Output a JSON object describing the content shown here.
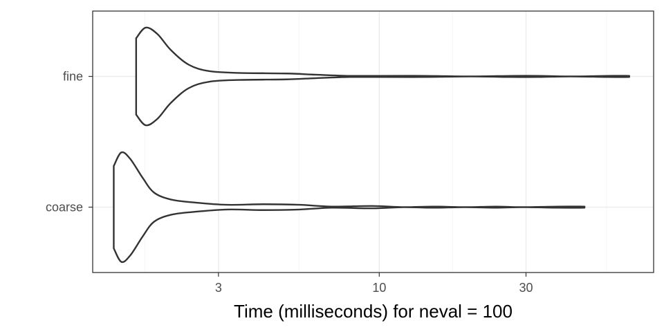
{
  "chart_data": {
    "type": "violin",
    "orientation": "horizontal",
    "title": "",
    "xlabel": "Time (milliseconds) for neval = 100",
    "ylabel": "",
    "x_scale": "log10",
    "xlim": [
      1.17,
      78
    ],
    "x_ticks": [
      3,
      10,
      30
    ],
    "x_tick_labels": [
      "3",
      "10",
      "30"
    ],
    "x_minor_ticks": [
      1.73,
      5.48,
      17.3,
      54.8
    ],
    "categories": [
      "coarse",
      "fine"
    ],
    "grid": true,
    "legend": "none",
    "colors": {
      "outline": "#333333",
      "fill": "#ffffff",
      "grid": "#ebebeb",
      "text": "#4d4d4d"
    },
    "series": [
      {
        "category": "coarse",
        "min": 1.37,
        "max": 46.5,
        "density_profile": [
          [
            1.37,
            0.7
          ],
          [
            1.45,
            0.93
          ],
          [
            1.55,
            0.82
          ],
          [
            1.7,
            0.5
          ],
          [
            1.85,
            0.25
          ],
          [
            2.1,
            0.13
          ],
          [
            2.5,
            0.08
          ],
          [
            3.2,
            0.04
          ],
          [
            4.2,
            0.05
          ],
          [
            5.5,
            0.04
          ],
          [
            7.0,
            0.01
          ],
          [
            9.5,
            0.02
          ],
          [
            12.0,
            0.0
          ],
          [
            15.0,
            0.01
          ],
          [
            19.0,
            0.0
          ],
          [
            24.0,
            0.01
          ],
          [
            29.0,
            0.0
          ],
          [
            38.0,
            0.01
          ],
          [
            46.5,
            0.01
          ]
        ]
      },
      {
        "category": "fine",
        "min": 1.62,
        "max": 65.0,
        "density_profile": [
          [
            1.62,
            0.65
          ],
          [
            1.74,
            0.83
          ],
          [
            1.9,
            0.72
          ],
          [
            2.1,
            0.45
          ],
          [
            2.4,
            0.2
          ],
          [
            2.8,
            0.09
          ],
          [
            3.5,
            0.06
          ],
          [
            5.0,
            0.05
          ],
          [
            6.2,
            0.03
          ],
          [
            8.0,
            0.01
          ],
          [
            10.0,
            0.01
          ],
          [
            14.0,
            0.01
          ],
          [
            20.0,
            0.0
          ],
          [
            27.0,
            0.01
          ],
          [
            33.0,
            0.01
          ],
          [
            42.0,
            0.0
          ],
          [
            55.0,
            0.01
          ],
          [
            65.0,
            0.01
          ]
        ]
      }
    ]
  }
}
